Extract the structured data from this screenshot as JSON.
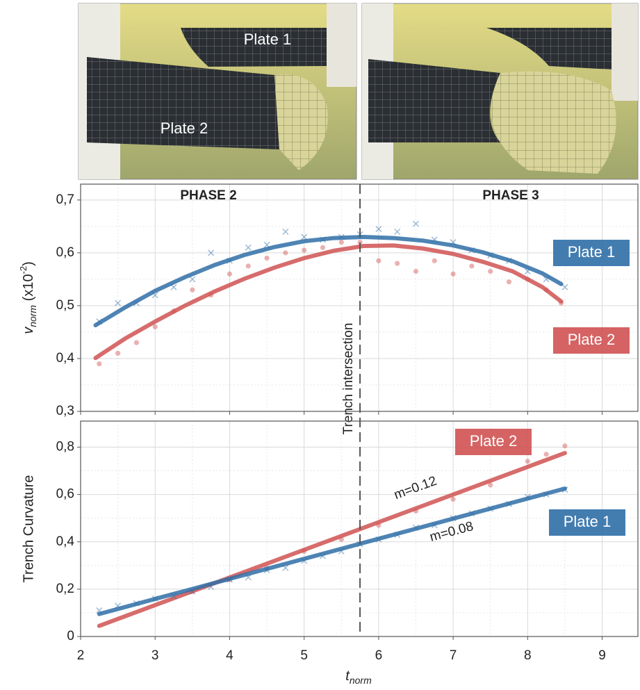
{
  "photos": {
    "labels": [
      "Plate 1",
      "Plate 2"
    ]
  },
  "chart_data": [
    {
      "type": "scatter",
      "y_label": [
        "v",
        "norm",
        " (x10",
        "-2",
        ")"
      ],
      "annotations": [
        "PHASE 2",
        "PHASE 3",
        "Trench intersection"
      ],
      "divider_x": 5.75,
      "xlim": [
        2,
        9.48
      ],
      "xticks": [
        2,
        3,
        4,
        5,
        6,
        7,
        8,
        9
      ],
      "ylim": [
        0.3,
        0.73
      ],
      "yticks": [
        {
          "value": 0.3,
          "label": "0,3"
        },
        {
          "value": 0.4,
          "label": "0,4"
        },
        {
          "value": 0.5,
          "label": "0,5"
        },
        {
          "value": 0.6,
          "label": "0,6"
        },
        {
          "value": 0.7,
          "label": "0,7"
        }
      ],
      "grid": true,
      "series": [
        {
          "name": "Plate 1",
          "color": "#2f6fa7",
          "marker": "x",
          "x": [
            2.25,
            2.5,
            2.75,
            3.0,
            3.25,
            3.5,
            3.75,
            4.0,
            4.25,
            4.5,
            4.75,
            5.0,
            5.25,
            5.5,
            5.75,
            6.0,
            6.25,
            6.5,
            6.75,
            7.0,
            7.25,
            7.5,
            7.75,
            8.0,
            8.25,
            8.5
          ],
          "values": [
            0.47,
            0.505,
            0.505,
            0.52,
            0.535,
            0.55,
            0.6,
            0.585,
            0.61,
            0.615,
            0.64,
            0.63,
            0.625,
            0.63,
            0.635,
            0.645,
            0.64,
            0.655,
            0.625,
            0.62,
            0.605,
            0.595,
            0.585,
            0.565,
            0.55,
            0.535
          ],
          "fit": {
            "x": [
              2.2,
              2.6,
              3.0,
              3.4,
              3.8,
              4.2,
              4.6,
              5.0,
              5.4,
              5.8,
              6.2,
              6.6,
              7.0,
              7.4,
              7.8,
              8.2,
              8.45
            ],
            "values": [
              0.463,
              0.497,
              0.528,
              0.554,
              0.577,
              0.596,
              0.611,
              0.622,
              0.628,
              0.63,
              0.628,
              0.623,
              0.614,
              0.601,
              0.584,
              0.561,
              0.541
            ]
          }
        },
        {
          "name": "Plate 2",
          "color": "#d05252",
          "marker": "o",
          "x": [
            2.25,
            2.5,
            2.75,
            3.0,
            3.25,
            3.5,
            3.75,
            4.0,
            4.25,
            4.5,
            4.75,
            5.0,
            5.25,
            5.5,
            5.75,
            6.0,
            6.25,
            6.5,
            6.75,
            7.0,
            7.25,
            7.5,
            7.75,
            8.0,
            8.25,
            8.45
          ],
          "values": [
            0.39,
            0.41,
            0.43,
            0.46,
            0.49,
            0.53,
            0.52,
            0.56,
            0.575,
            0.59,
            0.6,
            0.605,
            0.61,
            0.62,
            0.62,
            0.585,
            0.58,
            0.565,
            0.585,
            0.56,
            0.575,
            0.565,
            0.545,
            0.55,
            0.53,
            0.505
          ],
          "fit": {
            "x": [
              2.2,
              2.6,
              3.0,
              3.4,
              3.8,
              4.2,
              4.6,
              5.0,
              5.4,
              5.8,
              6.2,
              6.6,
              7.0,
              7.4,
              7.8,
              8.2,
              8.45
            ],
            "values": [
              0.401,
              0.438,
              0.47,
              0.5,
              0.527,
              0.551,
              0.572,
              0.59,
              0.604,
              0.613,
              0.614,
              0.608,
              0.598,
              0.583,
              0.565,
              0.535,
              0.508
            ]
          }
        }
      ]
    },
    {
      "type": "scatter",
      "y_label": "Trench Curvature",
      "x_label": [
        "t",
        "norm"
      ],
      "annotations": [
        "m=0.12",
        "m=0.08"
      ],
      "xlim": [
        2,
        9.48
      ],
      "xticks": [
        2,
        3,
        4,
        5,
        6,
        7,
        8,
        9
      ],
      "ylim": [
        0,
        0.91
      ],
      "yticks": [
        0,
        {
          "value": 0.2,
          "label": "0,2"
        },
        {
          "value": 0.4,
          "label": "0,4"
        },
        {
          "value": 0.6,
          "label": "0,6"
        },
        {
          "value": 0.8,
          "label": "0,8"
        }
      ],
      "grid": true,
      "series": [
        {
          "name": "Plate 2",
          "color": "#d05252",
          "marker": "o",
          "x": [
            3.5,
            4.0,
            4.5,
            5.0,
            5.5,
            6.0,
            6.5,
            7.0,
            7.5,
            8.0,
            8.25,
            8.5
          ],
          "values": [
            0.19,
            0.24,
            0.29,
            0.36,
            0.41,
            0.47,
            0.53,
            0.58,
            0.64,
            0.74,
            0.77,
            0.805
          ],
          "fit": {
            "x": [
              2.25,
              8.5
            ],
            "values": [
              0.045,
              0.775
            ]
          }
        },
        {
          "name": "Plate 1",
          "color": "#2f6fa7",
          "marker": "x",
          "x": [
            2.25,
            2.5,
            2.75,
            3.0,
            3.25,
            3.5,
            3.75,
            4.0,
            4.25,
            4.5,
            4.75,
            5.0,
            5.25,
            5.5,
            5.75,
            6.0,
            6.25,
            6.5,
            6.75,
            7.0,
            7.25,
            7.5,
            7.75,
            8.0,
            8.25,
            8.5
          ],
          "values": [
            0.11,
            0.13,
            0.14,
            0.16,
            0.17,
            0.19,
            0.21,
            0.24,
            0.25,
            0.28,
            0.29,
            0.32,
            0.34,
            0.36,
            0.39,
            0.41,
            0.43,
            0.46,
            0.47,
            0.5,
            0.52,
            0.54,
            0.56,
            0.59,
            0.6,
            0.62
          ],
          "fit": {
            "x": [
              2.25,
              8.5
            ],
            "values": [
              0.095,
              0.625
            ]
          }
        }
      ]
    }
  ]
}
